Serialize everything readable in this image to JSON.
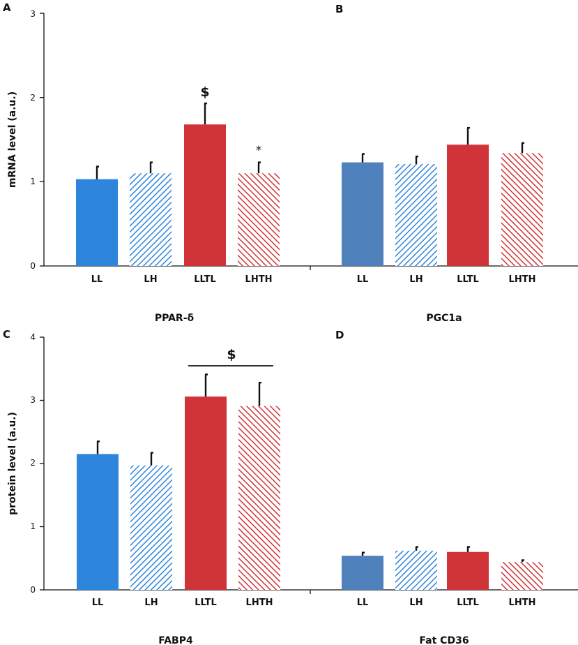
{
  "chart_data": [
    {
      "panel": "A",
      "type": "bar",
      "categories": [
        "LL",
        "LH",
        "LLTL",
        "LHTH"
      ],
      "values": [
        1.03,
        1.1,
        1.68,
        1.1
      ],
      "errors": [
        0.15,
        0.13,
        0.25,
        0.13
      ],
      "xlabel": "PPAR-δ",
      "ylabel": "mRNA level (a.u.)",
      "ylim": [
        0,
        3
      ],
      "yticks": [
        "0",
        "1",
        "2",
        "3"
      ],
      "annotations": [
        {
          "category": "LLTL",
          "text": "$"
        },
        {
          "category": "LHTH",
          "text": "*"
        }
      ]
    },
    {
      "panel": "B",
      "type": "bar",
      "categories": [
        "LL",
        "LH",
        "LLTL",
        "LHTH"
      ],
      "values": [
        1.23,
        1.21,
        1.44,
        1.34
      ],
      "errors": [
        0.1,
        0.09,
        0.2,
        0.12
      ],
      "xlabel": "PGC1a",
      "ylabel": "",
      "ylim": [
        0,
        3
      ]
    },
    {
      "panel": "C",
      "type": "bar",
      "categories": [
        "LL",
        "LH",
        "LLTL",
        "LHTH"
      ],
      "values": [
        2.15,
        1.97,
        3.06,
        2.91
      ],
      "errors": [
        0.2,
        0.2,
        0.35,
        0.37
      ],
      "xlabel": "FABP4",
      "ylabel": "protein level (a.u.)",
      "ylim": [
        0,
        4
      ],
      "yticks": [
        "0",
        "1",
        "2",
        "3",
        "4"
      ],
      "annotations": [
        {
          "span": [
            "LLTL",
            "LHTH"
          ],
          "text": "$"
        }
      ]
    },
    {
      "panel": "D",
      "type": "bar",
      "categories": [
        "LL",
        "LH",
        "LLTL",
        "LHTH"
      ],
      "values": [
        0.54,
        0.62,
        0.6,
        0.44
      ],
      "errors": [
        0.05,
        0.06,
        0.08,
        0.03
      ],
      "xlabel": "Fat CD36",
      "ylabel": "",
      "ylim": [
        0,
        4
      ]
    }
  ],
  "colors": {
    "blue_A": "#2e86dc",
    "blue_B": "#4f81bd",
    "red": "#d13438",
    "axis": "#111111"
  }
}
